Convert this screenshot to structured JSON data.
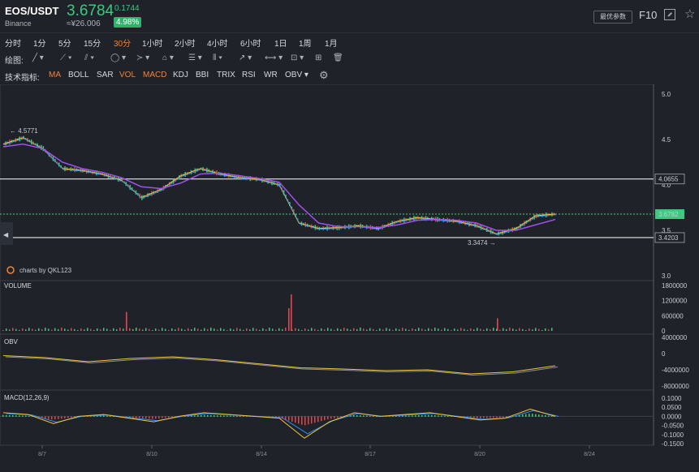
{
  "header": {
    "pair": "EOS/USDT",
    "exchange": "Binance",
    "price": "3.6784",
    "cny_price": "≈¥26.006",
    "change": "0.1744",
    "change_pct": "4.98%",
    "options_label": "最优参数",
    "f10_label": "F10"
  },
  "toolbar": {
    "periods": [
      "分时",
      "1分",
      "5分",
      "15分",
      "30分",
      "1小时",
      "2小时",
      "4小时",
      "6小时",
      "1日",
      "1周",
      "1月"
    ],
    "active_period": "30分",
    "draw_label": "绘图:",
    "indicator_label": "技术指标:",
    "indicators": [
      "MA",
      "BOLL",
      "SAR",
      "VOL",
      "MACD",
      "KDJ",
      "BBI",
      "TRIX",
      "RSI",
      "WR",
      "OBV"
    ],
    "active_indicators": [
      "MA",
      "VOL",
      "MACD"
    ],
    "draw_tools": [
      "trend-line-icon",
      "ray-icon",
      "parallel-icon",
      "circle-icon",
      "zigzag-icon",
      "pattern-icon",
      "fib-icon",
      "gann-icon",
      "arrow-icon",
      "range-icon",
      "brush-icon",
      "measure-icon",
      "trash-icon"
    ]
  },
  "colors": {
    "up": "#3dc97f",
    "down": "#e0484f",
    "ma_fast": "#f0c23a",
    "ma_mid": "#2f8ff0",
    "ma_slow": "#a24ff0",
    "accent": "#f0843a"
  },
  "chart_data": [
    {
      "type": "line",
      "name": "price",
      "x": [
        "8/7",
        "8/10",
        "8/14",
        "8/17",
        "8/20",
        "8/24"
      ],
      "close_samples": [
        4.45,
        4.52,
        4.4,
        4.18,
        4.16,
        4.12,
        4.05,
        3.86,
        3.95,
        4.1,
        4.18,
        4.12,
        4.08,
        4.06,
        4.0,
        3.58,
        3.52,
        3.53,
        3.55,
        3.52,
        3.6,
        3.64,
        3.62,
        3.6,
        3.55,
        3.46,
        3.52,
        3.66,
        3.68
      ],
      "ma_samples": [
        4.42,
        4.45,
        4.4,
        4.25,
        4.18,
        4.14,
        4.08,
        3.98,
        3.96,
        4.02,
        4.12,
        4.13,
        4.1,
        4.07,
        4.03,
        3.78,
        3.58,
        3.54,
        3.54,
        3.53,
        3.56,
        3.61,
        3.62,
        3.61,
        3.58,
        3.5,
        3.5,
        3.56,
        3.62
      ],
      "high_label": "← 4.5771",
      "low_label": "3.3474 →",
      "h_lines": [
        {
          "value": 4.0655,
          "label": "4.0655"
        },
        {
          "value": 3.4203,
          "label": "3.4203"
        }
      ],
      "current": {
        "value": 3.6782,
        "label": "3.6782"
      },
      "ylim": [
        3.0,
        5.0
      ],
      "yticks": [
        "5.0",
        "4.5",
        "4.0",
        "3.5",
        "3.0"
      ],
      "watermark": "charts by QKL123"
    },
    {
      "type": "bar",
      "name": "VOLUME",
      "ylim": [
        0,
        1800000
      ],
      "yticks": [
        "1800000",
        "1200000",
        "600000",
        "0"
      ],
      "spikes": [
        {
          "x": "8/9",
          "value": 750000
        },
        {
          "x": "8/14",
          "value": 900000
        },
        {
          "x": "8/14",
          "value": 1450000
        },
        {
          "x": "8/20",
          "value": 500000
        }
      ],
      "baseline": 80000
    },
    {
      "type": "line",
      "name": "OBV",
      "ylim": [
        -8000000,
        4000000
      ],
      "yticks": [
        "4000000",
        "0",
        "-4000000",
        "-8000000"
      ],
      "values": [
        -500000,
        -1000000,
        -2000000,
        -1200000,
        -800000,
        -1500000,
        -2500000,
        -3500000,
        -3800000,
        -4200000,
        -4000000,
        -5000000,
        -4500000,
        -3000000
      ]
    },
    {
      "type": "line",
      "name": "MACD(12,26,9)",
      "ylim": [
        -0.15,
        0.1
      ],
      "yticks": [
        "0.1000",
        "0.0500",
        "0.0000",
        "-0.0500",
        "-0.1000",
        "-0.1500"
      ],
      "values": [
        0.02,
        0.01,
        -0.04,
        0.0,
        0.01,
        -0.01,
        -0.03,
        0.0,
        0.02,
        0.01,
        0.0,
        -0.01,
        -0.12,
        -0.03,
        0.02,
        0.0,
        0.01,
        0.02,
        0.0,
        -0.02,
        -0.01,
        0.04,
        0.0
      ]
    }
  ],
  "x_axis": [
    "8/7",
    "8/10",
    "8/14",
    "8/17",
    "8/20",
    "8/24"
  ]
}
